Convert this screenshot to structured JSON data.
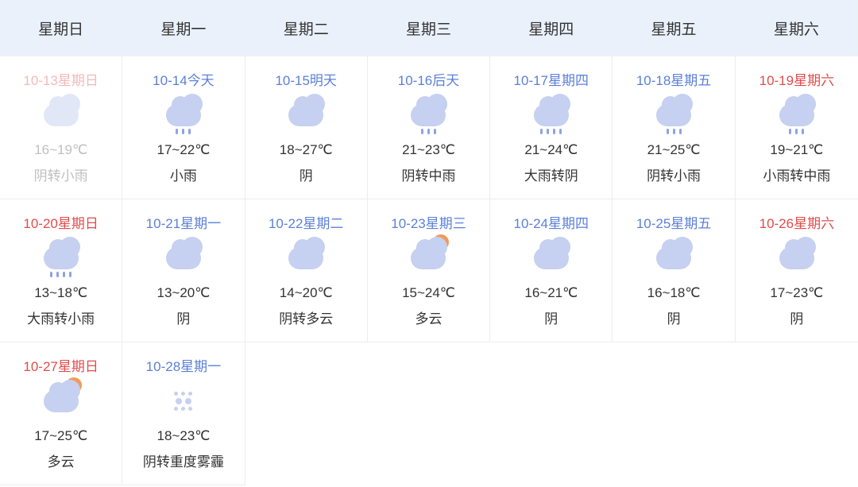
{
  "headers": [
    "星期日",
    "星期一",
    "星期二",
    "星期三",
    "星期四",
    "星期五",
    "星期六"
  ],
  "colors": {
    "header_bg": "#eaf1fb",
    "header_text": "#333333",
    "date_normal": "#5b7fd9",
    "date_past": "#f3b9b9",
    "date_weekend": "#e34b4b",
    "text": "#333333",
    "text_past": "#bfbfbf",
    "border": "#ededed",
    "cloud": "#c6d0f0",
    "cloud_light": "#e2e7f7",
    "rain": "#8fa3e0",
    "sun": "#f09a5b",
    "background": "#ffffff"
  },
  "icon_map": {
    "overcast-light": {
      "type": "cloud",
      "variant": "light"
    },
    "light-rain": {
      "type": "cloud",
      "rain": 3
    },
    "overcast": {
      "type": "cloud"
    },
    "moderate-rain": {
      "type": "cloud",
      "rain": 3
    },
    "heavy-rain": {
      "type": "cloud",
      "rain": 4
    },
    "partly-cloudy": {
      "type": "cloud",
      "sun": true
    },
    "haze": {
      "type": "haze"
    }
  },
  "days": [
    {
      "date": "10-13",
      "day": "星期日",
      "temp": "16~19℃",
      "cond": "阴转小雨",
      "icon": "overcast-light",
      "past": true,
      "weekend": true
    },
    {
      "date": "10-14",
      "day": "今天",
      "temp": "17~22℃",
      "cond": "小雨",
      "icon": "light-rain"
    },
    {
      "date": "10-15",
      "day": "明天",
      "temp": "18~27℃",
      "cond": "阴",
      "icon": "overcast"
    },
    {
      "date": "10-16",
      "day": "后天",
      "temp": "21~23℃",
      "cond": "阴转中雨",
      "icon": "moderate-rain"
    },
    {
      "date": "10-17",
      "day": "星期四",
      "temp": "21~24℃",
      "cond": "大雨转阴",
      "icon": "heavy-rain"
    },
    {
      "date": "10-18",
      "day": "星期五",
      "temp": "21~25℃",
      "cond": "阴转小雨",
      "icon": "light-rain"
    },
    {
      "date": "10-19",
      "day": "星期六",
      "temp": "19~21℃",
      "cond": "小雨转中雨",
      "icon": "moderate-rain",
      "weekend": true
    },
    {
      "date": "10-20",
      "day": "星期日",
      "temp": "13~18℃",
      "cond": "大雨转小雨",
      "icon": "heavy-rain",
      "weekend": true
    },
    {
      "date": "10-21",
      "day": "星期一",
      "temp": "13~20℃",
      "cond": "阴",
      "icon": "overcast"
    },
    {
      "date": "10-22",
      "day": "星期二",
      "temp": "14~20℃",
      "cond": "阴转多云",
      "icon": "overcast"
    },
    {
      "date": "10-23",
      "day": "星期三",
      "temp": "15~24℃",
      "cond": "多云",
      "icon": "partly-cloudy"
    },
    {
      "date": "10-24",
      "day": "星期四",
      "temp": "16~21℃",
      "cond": "阴",
      "icon": "overcast"
    },
    {
      "date": "10-25",
      "day": "星期五",
      "temp": "16~18℃",
      "cond": "阴",
      "icon": "overcast"
    },
    {
      "date": "10-26",
      "day": "星期六",
      "temp": "17~23℃",
      "cond": "阴",
      "icon": "overcast",
      "weekend": true
    },
    {
      "date": "10-27",
      "day": "星期日",
      "temp": "17~25℃",
      "cond": "多云",
      "icon": "partly-cloudy",
      "weekend": true
    },
    {
      "date": "10-28",
      "day": "星期一",
      "temp": "18~23℃",
      "cond": "阴转重度雾霾",
      "icon": "haze"
    }
  ]
}
